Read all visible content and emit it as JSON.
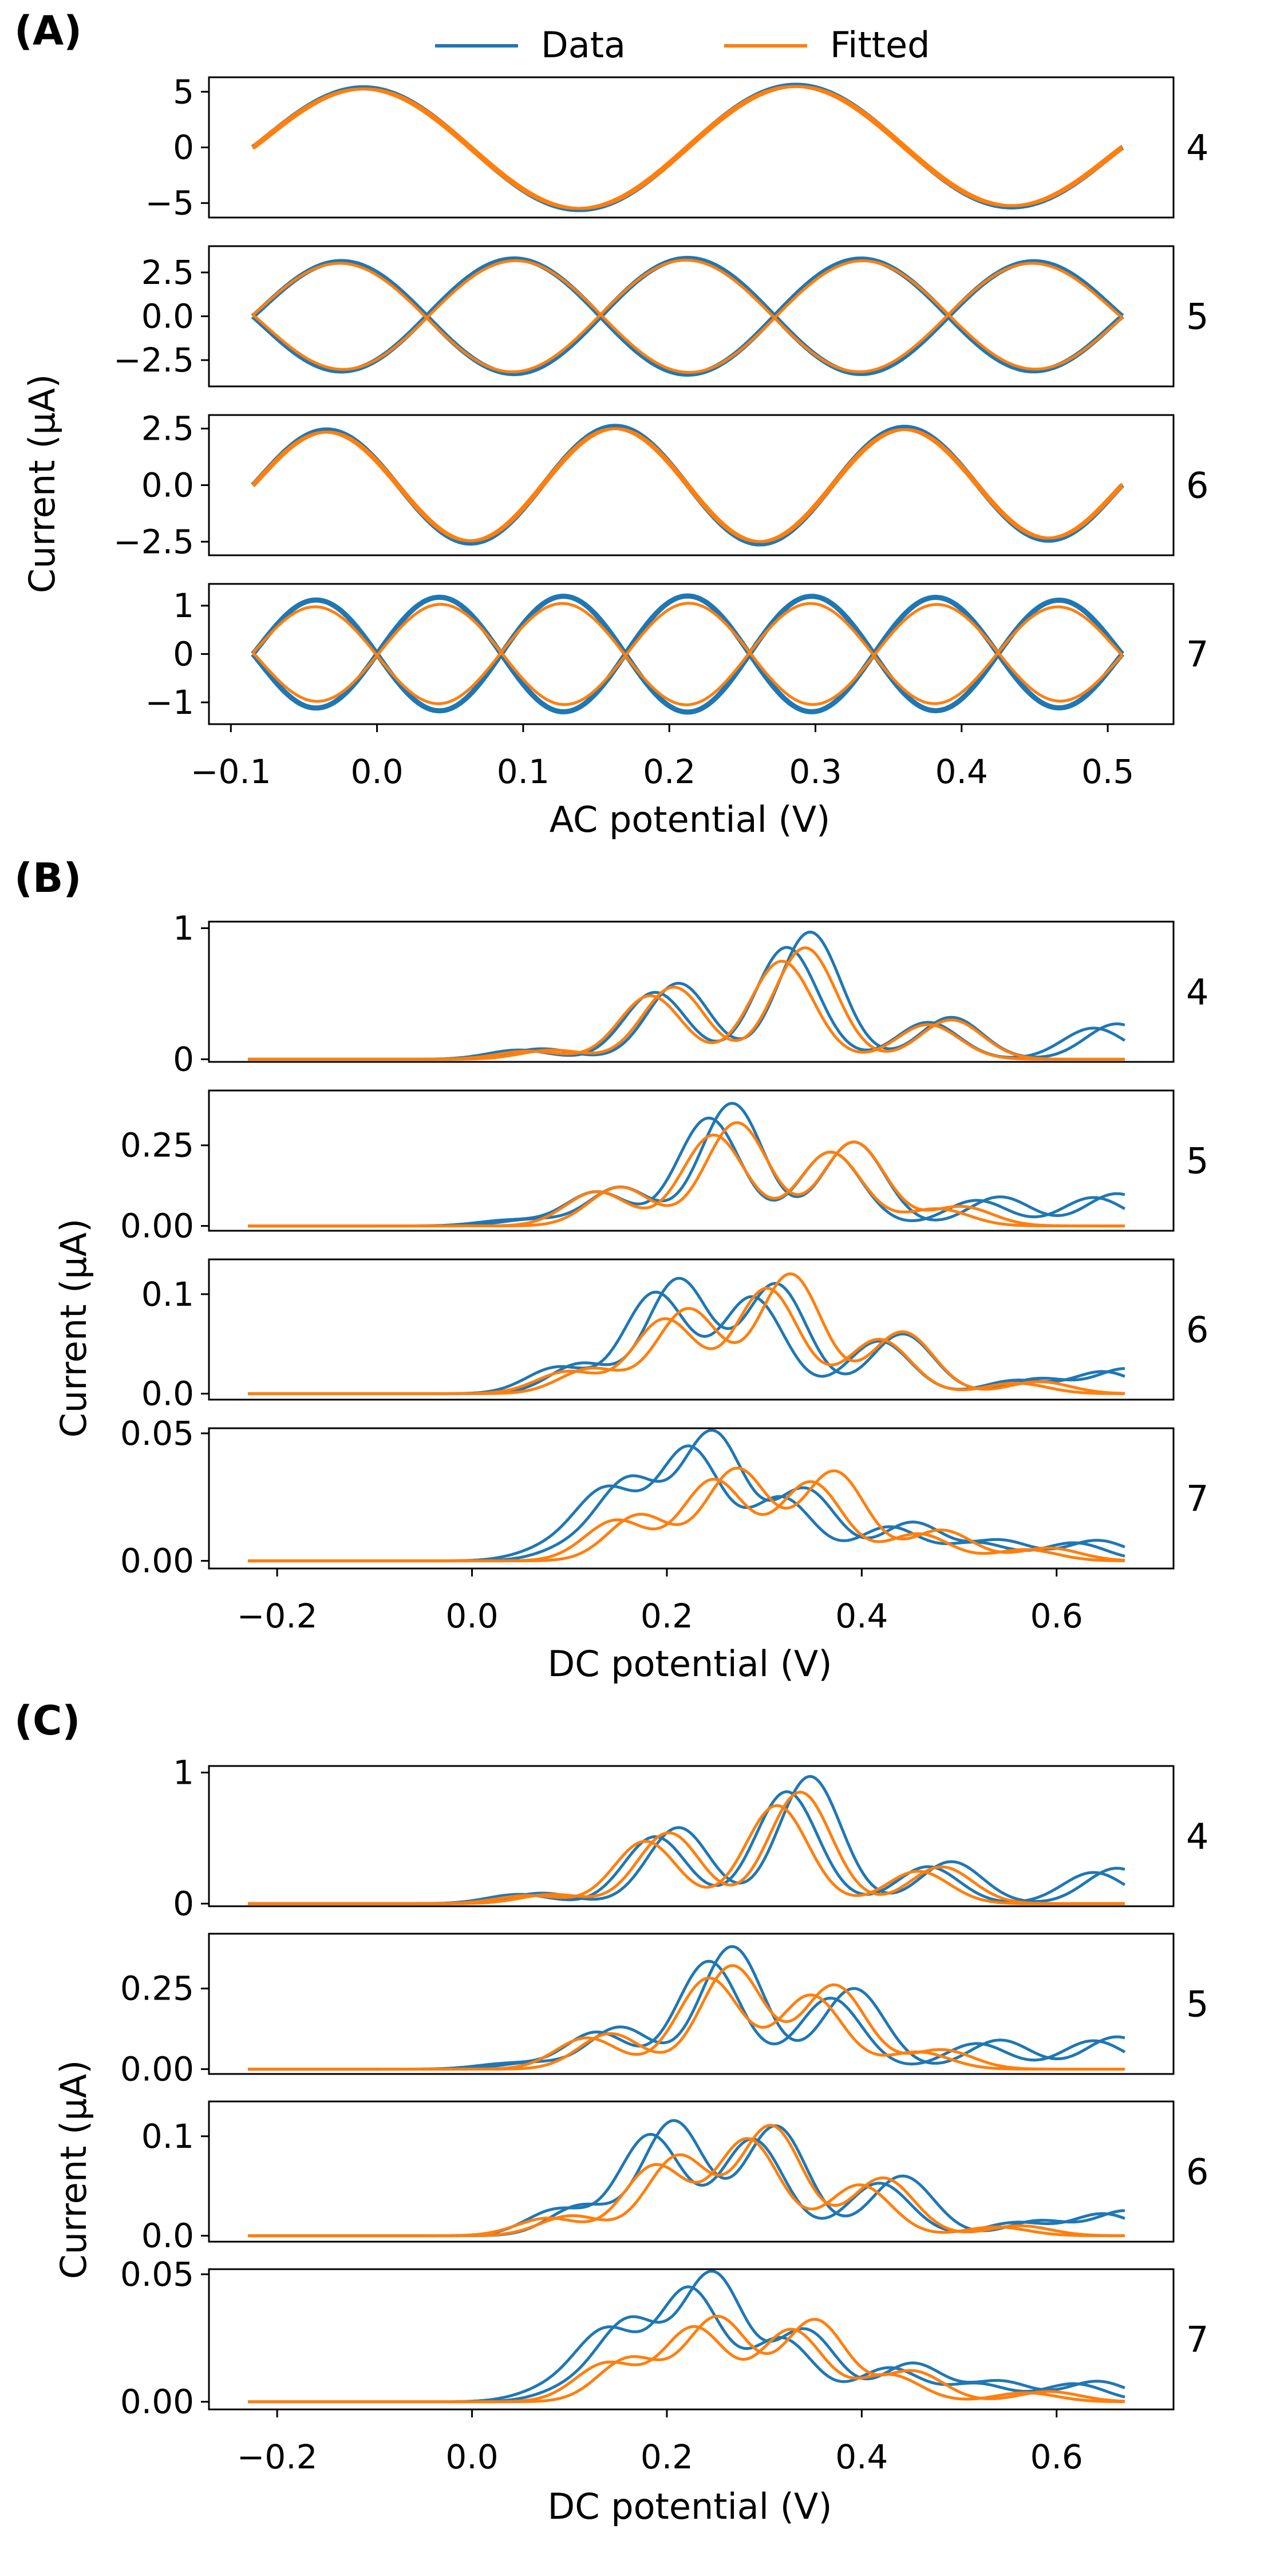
{
  "legend": {
    "placement": "top-center",
    "entries": [
      {
        "label": "Data",
        "color": "#1f77b4"
      },
      {
        "label": "Fitted",
        "color": "#ff7f0e"
      }
    ]
  },
  "colors": {
    "data": "#1f77b4",
    "fitted": "#ff7f0e",
    "axis": "#000000"
  },
  "chart_data": [
    {
      "type": "line",
      "panel_label": "(A)",
      "xlabel": "AC potential (V)",
      "ylabel": "Current (μA)",
      "xlim": [
        -0.115,
        0.545
      ],
      "xticks": [
        -0.1,
        0.0,
        0.1,
        0.2,
        0.3,
        0.4,
        0.5
      ],
      "xtick_labels": [
        "−0.1",
        "0.0",
        "0.1",
        "0.2",
        "0.3",
        "0.4",
        "0.5"
      ],
      "x_range": [
        -0.085,
        0.51
      ],
      "grid": false,
      "series_names": [
        "Data",
        "Fitted"
      ],
      "harmonics": [
        {
          "label": "4",
          "ylim": [
            -6.3,
            6.3
          ],
          "yticks": [
            -5,
            0,
            5
          ],
          "ytick_labels": [
            "−5",
            "0",
            "5"
          ],
          "amplitude": 5.6,
          "fitted_amplitude": 5.5,
          "cycles": 2
        },
        {
          "label": "5",
          "ylim": [
            -4.0,
            4.0
          ],
          "yticks": [
            -2.5,
            0.0,
            2.5
          ],
          "ytick_labels": [
            "−2.5",
            "0.0",
            "2.5"
          ],
          "amplitude": 3.3,
          "fitted_amplitude": 3.2,
          "cycles": 2.5
        },
        {
          "label": "6",
          "ylim": [
            -3.1,
            3.1
          ],
          "yticks": [
            -2.5,
            0.0,
            2.5
          ],
          "ytick_labels": [
            "−2.5",
            "0.0",
            "2.5"
          ],
          "amplitude": 2.6,
          "fitted_amplitude": 2.5,
          "cycles": 3
        },
        {
          "label": "7",
          "ylim": [
            -1.45,
            1.45
          ],
          "yticks": [
            -1,
            0,
            1
          ],
          "ytick_labels": [
            "−1",
            "0",
            "1"
          ],
          "amplitude": 1.2,
          "fitted_amplitude": 1.05,
          "cycles": 3.5
        }
      ]
    },
    {
      "type": "line",
      "panel_label": "(B)",
      "xlabel": "DC potential (V)",
      "ylabel": "Current (μA)",
      "xlim": [
        -0.27,
        0.72
      ],
      "xticks": [
        -0.2,
        0.0,
        0.2,
        0.4,
        0.6
      ],
      "xtick_labels": [
        "−0.2",
        "0.0",
        "0.2",
        "0.4",
        "0.6"
      ],
      "x_range": [
        -0.23,
        0.67
      ],
      "grid": false,
      "series_names": [
        "Data",
        "Fitted"
      ],
      "harmonics": [
        {
          "label": "4",
          "ylim": [
            -0.02,
            1.05
          ],
          "yticks": [
            0,
            1
          ],
          "ytick_labels": [
            "0",
            "1"
          ],
          "data_peaks": [
            [
              0.06,
              0.08
            ],
            [
              0.2,
              0.58
            ],
            [
              0.335,
              0.97
            ],
            [
              0.48,
              0.32
            ],
            [
              0.65,
              0.27
            ]
          ],
          "fitted_peaks": [
            [
              0.07,
              0.07
            ],
            [
              0.195,
              0.55
            ],
            [
              0.33,
              0.85
            ],
            [
              0.48,
              0.3
            ]
          ]
        },
        {
          "label": "5",
          "ylim": [
            -0.015,
            0.42
          ],
          "yticks": [
            0.0,
            0.25
          ],
          "ytick_labels": [
            "0.00",
            "0.25"
          ],
          "data_peaks": [
            [
              0.05,
              0.02
            ],
            [
              0.14,
              0.12
            ],
            [
              0.255,
              0.38
            ],
            [
              0.38,
              0.26
            ],
            [
              0.53,
              0.09
            ],
            [
              0.65,
              0.1
            ]
          ],
          "fitted_peaks": [
            [
              0.14,
              0.12
            ],
            [
              0.26,
              0.32
            ],
            [
              0.38,
              0.26
            ],
            [
              0.49,
              0.06
            ]
          ]
        },
        {
          "label": "6",
          "ylim": [
            -0.006,
            0.135
          ],
          "yticks": [
            0.0,
            0.1
          ],
          "ytick_labels": [
            "0.0",
            "0.1"
          ],
          "data_peaks": [
            [
              0.1,
              0.03
            ],
            [
              0.2,
              0.115
            ],
            [
              0.3,
              0.11
            ],
            [
              0.43,
              0.06
            ],
            [
              0.57,
              0.015
            ],
            [
              0.66,
              0.025
            ]
          ],
          "fitted_peaks": [
            [
              0.11,
              0.025
            ],
            [
              0.21,
              0.085
            ],
            [
              0.315,
              0.12
            ],
            [
              0.43,
              0.062
            ],
            [
              0.57,
              0.012
            ]
          ]
        },
        {
          "label": "7",
          "ylim": [
            -0.003,
            0.052
          ],
          "yticks": [
            0.0,
            0.05
          ],
          "ytick_labels": [
            "0.00",
            "0.05"
          ],
          "data_peaks": [
            [
              0.09,
              0.005
            ],
            [
              0.15,
              0.031
            ],
            [
              0.235,
              0.05
            ],
            [
              0.33,
              0.028
            ],
            [
              0.44,
              0.015
            ],
            [
              0.53,
              0.008
            ],
            [
              0.63,
              0.008
            ]
          ],
          "fitted_peaks": [
            [
              0.16,
              0.018
            ],
            [
              0.26,
              0.036
            ],
            [
              0.36,
              0.035
            ],
            [
              0.47,
              0.012
            ],
            [
              0.58,
              0.005
            ]
          ]
        }
      ]
    },
    {
      "type": "line",
      "panel_label": "(C)",
      "xlabel": "DC potential (V)",
      "ylabel": "Current (μA)",
      "xlim": [
        -0.27,
        0.72
      ],
      "xticks": [
        -0.2,
        0.0,
        0.2,
        0.4,
        0.6
      ],
      "xtick_labels": [
        "−0.2",
        "0.0",
        "0.2",
        "0.4",
        "0.6"
      ],
      "x_range": [
        -0.23,
        0.67
      ],
      "grid": false,
      "series_names": [
        "Data",
        "Fitted"
      ],
      "harmonics": [
        {
          "label": "4",
          "ylim": [
            -0.02,
            1.05
          ],
          "yticks": [
            0,
            1
          ],
          "ytick_labels": [
            "0",
            "1"
          ],
          "data_peaks": [
            [
              0.06,
              0.08
            ],
            [
              0.2,
              0.58
            ],
            [
              0.335,
              0.97
            ],
            [
              0.48,
              0.32
            ],
            [
              0.65,
              0.27
            ]
          ],
          "fitted_peaks": [
            [
              0.07,
              0.07
            ],
            [
              0.19,
              0.54
            ],
            [
              0.325,
              0.85
            ],
            [
              0.47,
              0.28
            ]
          ]
        },
        {
          "label": "5",
          "ylim": [
            -0.015,
            0.42
          ],
          "yticks": [
            0.0,
            0.25
          ],
          "ytick_labels": [
            "0.00",
            "0.25"
          ],
          "data_peaks": [
            [
              0.05,
              0.02
            ],
            [
              0.14,
              0.13
            ],
            [
              0.255,
              0.38
            ],
            [
              0.38,
              0.25
            ],
            [
              0.53,
              0.09
            ],
            [
              0.65,
              0.1
            ]
          ],
          "fitted_peaks": [
            [
              0.13,
              0.11
            ],
            [
              0.255,
              0.32
            ],
            [
              0.36,
              0.26
            ],
            [
              0.47,
              0.06
            ]
          ]
        },
        {
          "label": "6",
          "ylim": [
            -0.006,
            0.135
          ],
          "yticks": [
            0.0,
            0.1
          ],
          "ytick_labels": [
            "0.0",
            "0.1"
          ],
          "data_peaks": [
            [
              0.1,
              0.03
            ],
            [
              0.195,
              0.115
            ],
            [
              0.3,
              0.11
            ],
            [
              0.43,
              0.06
            ],
            [
              0.57,
              0.015
            ],
            [
              0.66,
              0.025
            ]
          ],
          "fitted_peaks": [
            [
              0.09,
              0.02
            ],
            [
              0.2,
              0.08
            ],
            [
              0.295,
              0.11
            ],
            [
              0.41,
              0.058
            ],
            [
              0.55,
              0.01
            ]
          ]
        },
        {
          "label": "7",
          "ylim": [
            -0.003,
            0.052
          ],
          "yticks": [
            0.0,
            0.05
          ],
          "ytick_labels": [
            "0.00",
            "0.05"
          ],
          "data_peaks": [
            [
              0.09,
              0.005
            ],
            [
              0.15,
              0.031
            ],
            [
              0.235,
              0.05
            ],
            [
              0.33,
              0.028
            ],
            [
              0.44,
              0.015
            ],
            [
              0.53,
              0.008
            ],
            [
              0.63,
              0.008
            ]
          ],
          "fitted_peaks": [
            [
              0.15,
              0.017
            ],
            [
              0.24,
              0.033
            ],
            [
              0.34,
              0.032
            ],
            [
              0.44,
              0.012
            ],
            [
              0.58,
              0.004
            ]
          ]
        }
      ]
    }
  ]
}
